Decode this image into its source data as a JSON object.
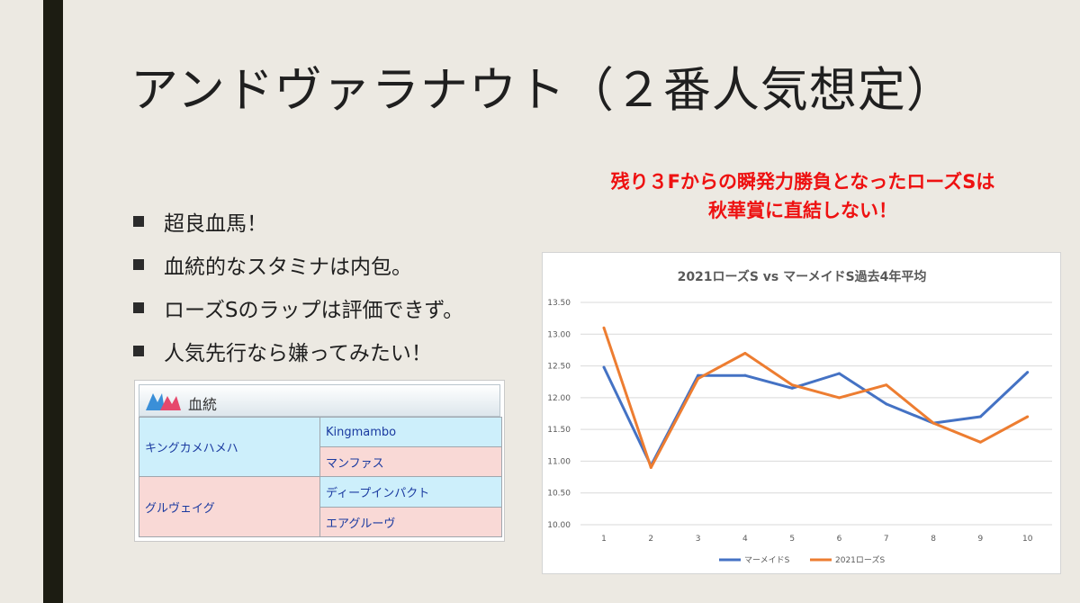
{
  "slide": {
    "title": "アンドヴァラナウト（２番人気想定）",
    "bullets": [
      "超良血馬！",
      "血統的なスタミナは内包。",
      "ローズSのラップは評価できず。",
      "人気先行なら嫌ってみたい！"
    ],
    "red_note": [
      "残り３Fからの瞬発力勝負となったローズSは",
      "秋華賞に直結しない！"
    ]
  },
  "pedigree": {
    "title": "血統",
    "logo": "pedigree-logo-icon",
    "sire": "キングカメハメハ",
    "sire_sire": "Kingmambo",
    "sire_dam": "マンファス",
    "dam": "グルヴェイグ",
    "dam_sire": "ディープインパクト",
    "dam_dam": "エアグルーヴ"
  },
  "chart_data": {
    "type": "line",
    "title": "2021ローズS vs マーメイドS過去4年平均",
    "categories": [
      "1",
      "2",
      "3",
      "4",
      "5",
      "6",
      "7",
      "8",
      "9",
      "10"
    ],
    "series": [
      {
        "name": "マーメイドS",
        "color": "#4472c4",
        "values": [
          12.48,
          10.93,
          12.35,
          12.35,
          12.15,
          12.38,
          11.9,
          11.6,
          11.7,
          12.4
        ]
      },
      {
        "name": "2021ローズS",
        "color": "#ed7d31",
        "values": [
          13.1,
          10.9,
          12.3,
          12.7,
          12.2,
          12.0,
          12.2,
          11.6,
          11.3,
          11.7
        ]
      }
    ],
    "yticks": [
      "13.50",
      "13.00",
      "12.50",
      "12.00",
      "11.50",
      "11.00",
      "10.50",
      "10.00"
    ],
    "ylim": [
      10.0,
      13.5
    ],
    "grid": true,
    "legend": "bottom"
  }
}
